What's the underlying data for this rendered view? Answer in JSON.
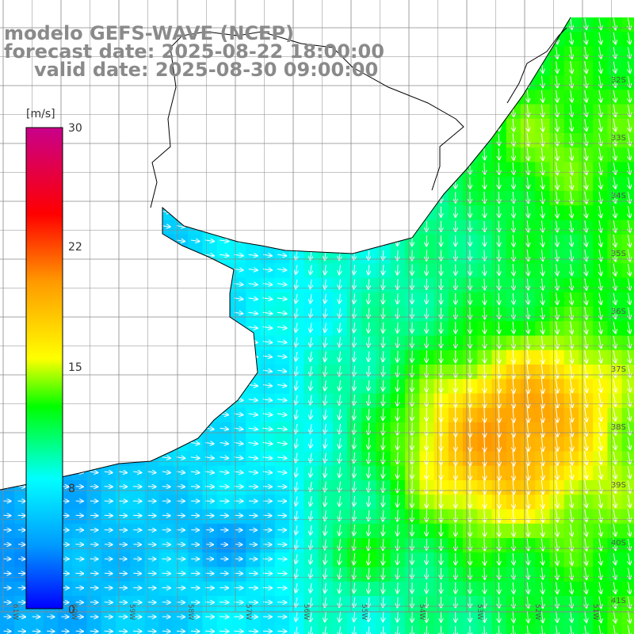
{
  "title": {
    "line1": "modelo GEFS-WAVE (NCEP)",
    "line2": "forecast date: 2025-08-22 18:00:00",
    "line3": "valid date: 2025-08-30 09:00:00"
  },
  "colorbar": {
    "unit_label": "[m/s]",
    "min": 0,
    "max": 30,
    "ticks": [
      {
        "value": 30,
        "label": "30"
      },
      {
        "value": 22,
        "label": "22"
      },
      {
        "value": 15,
        "label": "15"
      },
      {
        "value": 8,
        "label": "8"
      },
      {
        "value": 0,
        "label": "0"
      }
    ],
    "colors": [
      "#0000ff",
      "#0099ff",
      "#00ffff",
      "#00ff00",
      "#ffff00",
      "#ff9900",
      "#ff0000",
      "#c8008a"
    ]
  },
  "axes": {
    "lat_labels": [
      "32S",
      "33S",
      "34S",
      "35S",
      "36S",
      "37S",
      "38S",
      "39S",
      "40S",
      "41S"
    ],
    "lon_labels": [
      "61W",
      "60W",
      "59W",
      "58W",
      "57W",
      "56W",
      "55W",
      "54W",
      "53W",
      "52W",
      "51W"
    ]
  },
  "colors": {
    "land": "#ffffff",
    "coast": "#000000",
    "grid": "#888888",
    "arrow": "#ffffff",
    "title": "#8a8a8a"
  }
}
